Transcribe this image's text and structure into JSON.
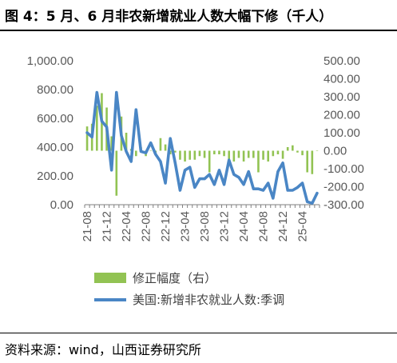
{
  "title": "图 4：5 月、6 月非农新增就业人数大幅下修（千人）",
  "source": "资料来源：wind，山西证券研究所",
  "colors": {
    "line": "#4a86c5",
    "bar": "#92c353",
    "axis": "#808080",
    "text": "#595959"
  },
  "chart_data": {
    "type": "bar+line",
    "y_left": {
      "min": 0,
      "max": 1000,
      "ticks": [
        "0.00",
        "200.00",
        "400.00",
        "600.00",
        "800.00",
        "1,000.00"
      ]
    },
    "y_right": {
      "min": -300,
      "max": 500,
      "ticks": [
        "-300.00",
        "-200.00",
        "-100.00",
        "0.00",
        "100.00",
        "200.00",
        "300.00",
        "400.00",
        "500.00"
      ]
    },
    "x_tick_labels": [
      "21-08",
      "21-12",
      "22-04",
      "22-08",
      "22-12",
      "23-04",
      "23-08",
      "23-12",
      "24-04",
      "24-08",
      "24-12",
      "25-04"
    ],
    "months": [
      "21-08",
      "21-09",
      "21-10",
      "21-11",
      "21-12",
      "22-01",
      "22-02",
      "22-03",
      "22-04",
      "22-05",
      "22-06",
      "22-07",
      "22-08",
      "22-09",
      "22-10",
      "22-11",
      "22-12",
      "23-01",
      "23-02",
      "23-03",
      "23-04",
      "23-05",
      "23-06",
      "23-07",
      "23-08",
      "23-09",
      "23-10",
      "23-11",
      "23-12",
      "24-01",
      "24-02",
      "24-03",
      "24-04",
      "24-05",
      "24-06",
      "24-07",
      "24-08",
      "24-09",
      "24-10",
      "24-11",
      "24-12",
      "25-01",
      "25-02",
      "25-03",
      "25-04",
      "25-05",
      "25-06",
      "25-07"
    ],
    "series": [
      {
        "name": "修正幅度（右）",
        "type": "bar",
        "axis": "right",
        "values": [
          135,
          150,
          250,
          320,
          240,
          80,
          -250,
          190,
          100,
          10,
          -30,
          20,
          -30,
          0,
          -10,
          70,
          35,
          -20,
          -10,
          -50,
          -60,
          -50,
          -50,
          -30,
          -40,
          -120,
          -20,
          -20,
          -30,
          -70,
          -60,
          -40,
          -60,
          -40,
          -40,
          -120,
          -50,
          -60,
          -30,
          -20,
          -45,
          20,
          30,
          -10,
          -25,
          -120,
          -130,
          0
        ]
      },
      {
        "name": "美国:新增非农就业人数:季调",
        "type": "line",
        "axis": "left",
        "values": [
          500,
          470,
          780,
          580,
          540,
          240,
          780,
          480,
          370,
          300,
          660,
          370,
          360,
          430,
          350,
          300,
          150,
          460,
          290,
          100,
          240,
          260,
          120,
          180,
          180,
          210,
          140,
          240,
          140,
          310,
          210,
          190,
          140,
          230,
          110,
          110,
          100,
          150,
          45,
          230,
          290,
          100,
          100,
          120,
          150,
          20,
          10,
          80
        ]
      }
    ]
  }
}
